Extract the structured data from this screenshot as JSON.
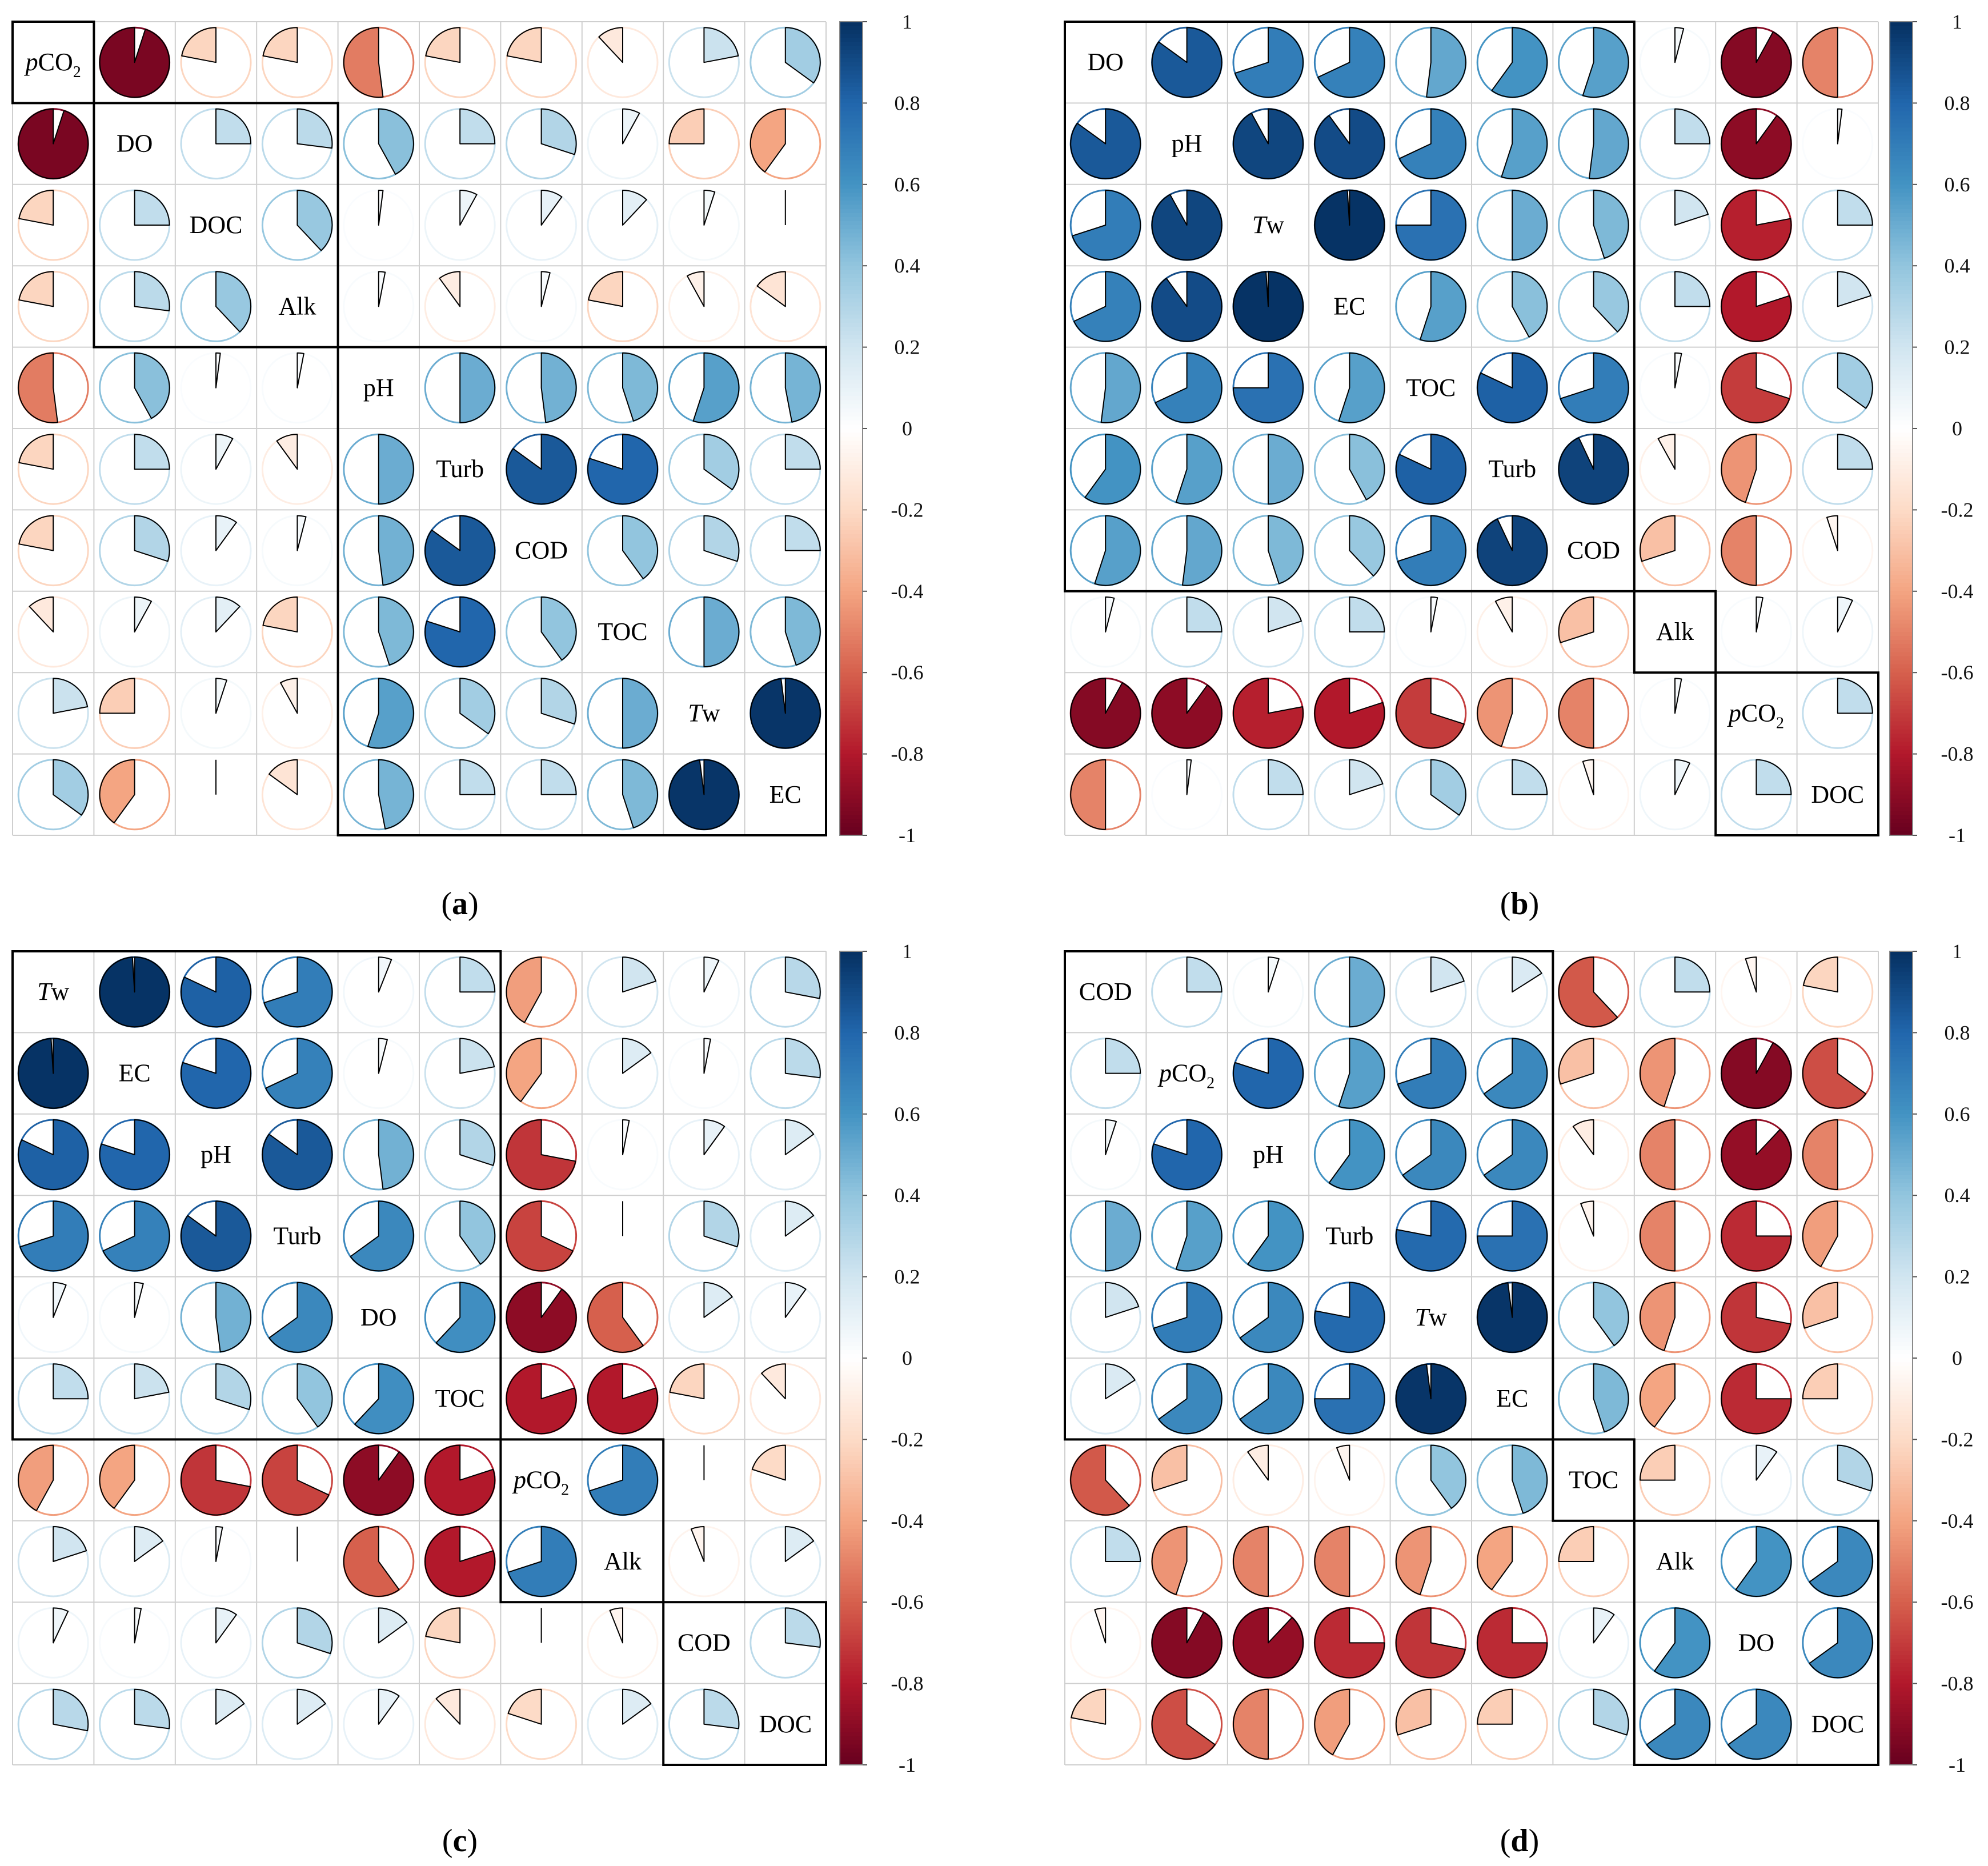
{
  "colors": {
    "scale": [
      "#67001F",
      "#B2182B",
      "#D6604D",
      "#F4A582",
      "#FDDBC7",
      "#FFFFFF",
      "#D1E5F0",
      "#92C5DE",
      "#4393C3",
      "#2166AC",
      "#053061"
    ],
    "grid": "#cfcfcf",
    "box": "#000000"
  },
  "colorbar": {
    "ticks": [
      "1",
      "0.8",
      "0.6",
      "0.4",
      "0.2",
      "0",
      "-0.2",
      "-0.4",
      "-0.6",
      "-0.8",
      "-1"
    ]
  },
  "chart_data": [
    {
      "type": "heatmap",
      "panel_label": "a",
      "variables": [
        [
          "",
          "p",
          "CO",
          "2"
        ],
        [
          "DO"
        ],
        [
          "DOC"
        ],
        [
          "Alk"
        ],
        [
          "pH"
        ],
        [
          "Turb"
        ],
        [
          "COD"
        ],
        [
          "TOC"
        ],
        [
          "",
          "T",
          "w",
          ""
        ],
        [
          "EC"
        ]
      ],
      "value_range": [
        -1,
        1
      ],
      "clusters": [
        [
          0,
          0
        ],
        [
          1,
          3
        ],
        [
          4,
          9
        ]
      ],
      "correlations": [
        [
          1,
          -0.95,
          -0.22,
          -0.22,
          -0.52,
          -0.22,
          -0.22,
          -0.12,
          0.22,
          0.35
        ],
        [
          -0.95,
          1,
          0.25,
          0.27,
          0.42,
          0.25,
          0.3,
          0.08,
          -0.25,
          -0.4
        ],
        [
          -0.22,
          0.25,
          1,
          0.38,
          0.02,
          0.08,
          0.1,
          0.12,
          0.05,
          0
        ],
        [
          -0.22,
          0.27,
          0.38,
          1,
          0.03,
          -0.1,
          0.04,
          -0.22,
          -0.08,
          -0.15
        ],
        [
          -0.52,
          0.42,
          0.02,
          0.03,
          1,
          0.5,
          0.48,
          0.45,
          0.55,
          0.47
        ],
        [
          -0.22,
          0.25,
          0.08,
          -0.1,
          0.5,
          1,
          0.85,
          0.8,
          0.35,
          0.25
        ],
        [
          -0.22,
          0.3,
          0.1,
          0.04,
          0.48,
          0.85,
          1,
          0.4,
          0.3,
          0.25
        ],
        [
          -0.12,
          0.08,
          0.12,
          -0.22,
          0.45,
          0.8,
          0.4,
          1,
          0.5,
          0.45
        ],
        [
          0.22,
          -0.25,
          0.05,
          -0.08,
          0.55,
          0.35,
          0.3,
          0.5,
          1,
          0.98
        ],
        [
          0.35,
          -0.4,
          0,
          -0.15,
          0.47,
          0.25,
          0.25,
          0.45,
          0.98,
          1
        ]
      ]
    },
    {
      "type": "heatmap",
      "panel_label": "b",
      "variables": [
        [
          "DO"
        ],
        [
          "pH"
        ],
        [
          "",
          "T",
          "w",
          ""
        ],
        [
          "EC"
        ],
        [
          "TOC"
        ],
        [
          "Turb"
        ],
        [
          "COD"
        ],
        [
          "Alk"
        ],
        [
          "",
          "p",
          "CO",
          "2"
        ],
        [
          "DOC"
        ]
      ],
      "value_range": [
        -1,
        1
      ],
      "clusters": [
        [
          0,
          6
        ],
        [
          7,
          7
        ],
        [
          8,
          9
        ]
      ],
      "correlations": [
        [
          1,
          0.85,
          0.7,
          0.68,
          0.52,
          0.6,
          0.55,
          0.04,
          -0.92,
          -0.5
        ],
        [
          0.85,
          1,
          0.92,
          0.9,
          0.68,
          0.55,
          0.52,
          0.25,
          -0.9,
          0.02
        ],
        [
          0.7,
          0.92,
          1,
          0.99,
          0.75,
          0.5,
          0.45,
          0.2,
          -0.78,
          0.25
        ],
        [
          0.68,
          0.9,
          0.99,
          1,
          0.55,
          0.42,
          0.38,
          0.25,
          -0.8,
          0.2
        ],
        [
          0.52,
          0.68,
          0.75,
          0.55,
          1,
          0.82,
          0.7,
          0.03,
          -0.7,
          0.35
        ],
        [
          0.6,
          0.55,
          0.5,
          0.42,
          0.82,
          1,
          0.93,
          -0.08,
          -0.45,
          0.25
        ],
        [
          0.55,
          0.52,
          0.45,
          0.38,
          0.7,
          0.93,
          1,
          -0.3,
          -0.5,
          -0.05
        ],
        [
          0.04,
          0.25,
          0.2,
          0.25,
          0.03,
          -0.08,
          -0.3,
          1,
          0.03,
          0.07
        ],
        [
          -0.92,
          -0.9,
          -0.78,
          -0.8,
          -0.7,
          -0.45,
          -0.5,
          0.03,
          1,
          0.25
        ],
        [
          -0.5,
          0.02,
          0.25,
          0.2,
          0.35,
          0.25,
          -0.05,
          0.07,
          0.25,
          1
        ]
      ]
    },
    {
      "type": "heatmap",
      "panel_label": "c",
      "variables": [
        [
          "",
          "T",
          "w",
          ""
        ],
        [
          "EC"
        ],
        [
          "pH"
        ],
        [
          "Turb"
        ],
        [
          "DO"
        ],
        [
          "TOC"
        ],
        [
          "",
          "p",
          "CO",
          "2"
        ],
        [
          "Alk"
        ],
        [
          "COD"
        ],
        [
          "DOC"
        ]
      ],
      "value_range": [
        -1,
        1
      ],
      "clusters": [
        [
          0,
          5
        ],
        [
          6,
          7
        ],
        [
          8,
          9
        ]
      ],
      "correlations": [
        [
          1,
          0.99,
          0.82,
          0.7,
          0.06,
          0.25,
          -0.42,
          0.2,
          0.07,
          0.28
        ],
        [
          0.99,
          1,
          0.8,
          0.68,
          0.04,
          0.22,
          -0.4,
          0.15,
          0.03,
          0.27
        ],
        [
          0.82,
          0.8,
          1,
          0.85,
          0.48,
          0.3,
          -0.72,
          0.03,
          0.1,
          0.15
        ],
        [
          0.7,
          0.68,
          0.85,
          1,
          0.65,
          0.4,
          -0.68,
          0,
          0.3,
          0.15
        ],
        [
          0.06,
          0.04,
          0.48,
          0.65,
          1,
          0.62,
          -0.9,
          -0.6,
          0.15,
          0.1
        ],
        [
          0.25,
          0.22,
          0.3,
          0.4,
          0.62,
          1,
          -0.8,
          -0.8,
          -0.22,
          -0.12
        ],
        [
          -0.42,
          -0.4,
          -0.72,
          -0.68,
          -0.9,
          -0.8,
          1,
          0.7,
          0,
          -0.2
        ],
        [
          0.2,
          0.15,
          0.03,
          0,
          -0.6,
          -0.8,
          0.7,
          1,
          -0.06,
          0.15
        ],
        [
          0.07,
          0.03,
          0.1,
          0.3,
          0.15,
          -0.22,
          0,
          -0.06,
          1,
          0.27
        ],
        [
          0.28,
          0.27,
          0.15,
          0.15,
          0.1,
          -0.12,
          -0.2,
          0.15,
          0.27,
          1
        ]
      ]
    },
    {
      "type": "heatmap",
      "panel_label": "d",
      "variables": [
        [
          "COD"
        ],
        [
          "",
          "p",
          "CO",
          "2"
        ],
        [
          "pH"
        ],
        [
          "Turb"
        ],
        [
          "",
          "T",
          "w",
          ""
        ],
        [
          "EC"
        ],
        [
          "TOC"
        ],
        [
          "Alk"
        ],
        [
          "DO"
        ],
        [
          "DOC"
        ]
      ],
      "value_range": [
        -1,
        1
      ],
      "clusters": [
        [
          0,
          5
        ],
        [
          6,
          6
        ],
        [
          7,
          9
        ]
      ],
      "correlations": [
        [
          1,
          0.25,
          0.05,
          0.5,
          0.2,
          0.16,
          -0.62,
          0.25,
          -0.05,
          -0.22
        ],
        [
          0.25,
          1,
          0.8,
          0.55,
          0.7,
          0.65,
          -0.3,
          -0.45,
          -0.92,
          -0.65
        ],
        [
          0.05,
          0.8,
          1,
          0.6,
          0.65,
          0.65,
          -0.1,
          -0.5,
          -0.88,
          -0.5
        ],
        [
          0.5,
          0.55,
          0.6,
          1,
          0.78,
          0.75,
          -0.06,
          -0.5,
          -0.75,
          -0.42
        ],
        [
          0.2,
          0.7,
          0.65,
          0.78,
          1,
          0.98,
          0.4,
          -0.45,
          -0.72,
          -0.3
        ],
        [
          0.16,
          0.65,
          0.65,
          0.75,
          0.98,
          1,
          0.45,
          -0.4,
          -0.75,
          -0.25
        ],
        [
          -0.62,
          -0.3,
          -0.1,
          -0.06,
          0.4,
          0.45,
          1,
          -0.25,
          0.1,
          0.3
        ],
        [
          0.25,
          -0.45,
          -0.5,
          -0.5,
          -0.45,
          -0.4,
          -0.25,
          1,
          0.6,
          0.65
        ],
        [
          -0.05,
          -0.92,
          -0.88,
          -0.75,
          -0.72,
          -0.75,
          0.1,
          0.6,
          1,
          0.65
        ],
        [
          -0.22,
          -0.65,
          -0.5,
          -0.42,
          -0.3,
          -0.25,
          0.3,
          0.65,
          0.65,
          1
        ]
      ]
    }
  ]
}
